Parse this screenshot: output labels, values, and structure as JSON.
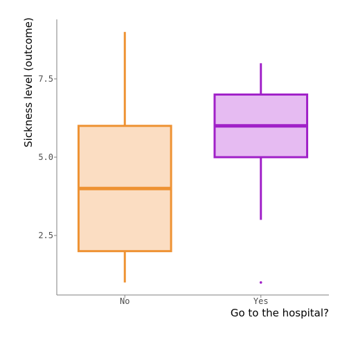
{
  "chart_data": {
    "type": "boxplot",
    "xlabel": "Go to the hospital?",
    "ylabel": "Sickness level (outcome)",
    "categories": [
      "No",
      "Yes"
    ],
    "y_ticks": [
      2.5,
      5.0,
      7.5
    ],
    "y_tick_labels": [
      "2.5",
      "5.0",
      "7.5"
    ],
    "ylim": [
      0.6,
      9.4
    ],
    "grid": false,
    "legend": "none",
    "boxes": [
      {
        "category": "No",
        "whisker_low": 1,
        "q1": 2,
        "median": 4,
        "q3": 6,
        "whisker_high": 9,
        "outliers": [],
        "color": "#EE9233",
        "fill": "#FBDDC2"
      },
      {
        "category": "Yes",
        "whisker_low": 3,
        "q1": 5,
        "median": 6,
        "q3": 7,
        "whisker_high": 8,
        "outliers": [
          1
        ],
        "color": "#A020C8",
        "fill": "#E6BBF2"
      }
    ]
  }
}
